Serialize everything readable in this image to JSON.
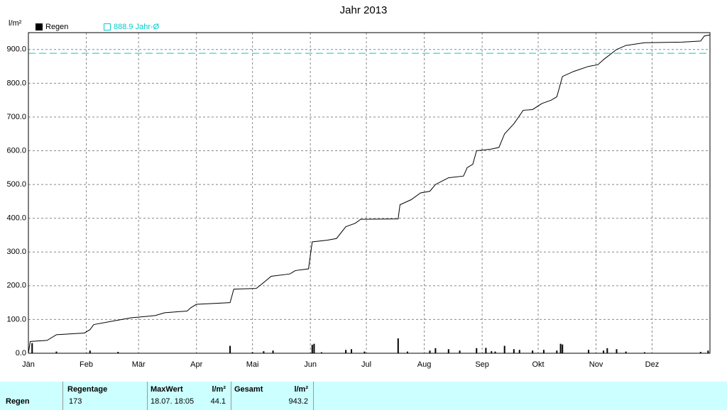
{
  "chart_data": {
    "type": "bar-line",
    "title": "Jahr 2013",
    "y_label": "l/m²",
    "xlim": [
      0,
      365
    ],
    "xticks": [
      {
        "value": 0,
        "label": "Jän"
      },
      {
        "value": 31,
        "label": "Feb"
      },
      {
        "value": 59,
        "label": "Mär"
      },
      {
        "value": 90,
        "label": "Apr"
      },
      {
        "value": 120,
        "label": "Mai"
      },
      {
        "value": 151,
        "label": "Jun"
      },
      {
        "value": 181,
        "label": "Jul"
      },
      {
        "value": 212,
        "label": "Aug"
      },
      {
        "value": 243,
        "label": "Sep"
      },
      {
        "value": 273,
        "label": "Okt"
      },
      {
        "value": 304,
        "label": "Nov"
      },
      {
        "value": 334,
        "label": "Dez"
      }
    ],
    "ylim": [
      0,
      950
    ],
    "yticks": [
      {
        "value": 0,
        "label": "0.0"
      },
      {
        "value": 100,
        "label": "100.0"
      },
      {
        "value": 200,
        "label": "200.0"
      },
      {
        "value": 300,
        "label": "300.0"
      },
      {
        "value": 400,
        "label": "400.0"
      },
      {
        "value": 500,
        "label": "500.0"
      },
      {
        "value": 600,
        "label": "600.0"
      },
      {
        "value": 700,
        "label": "700.0"
      },
      {
        "value": 800,
        "label": "800.0"
      },
      {
        "value": 900,
        "label": "900.0"
      }
    ],
    "grid": true,
    "series": [
      {
        "name": "Regen",
        "color": "#000000",
        "x": [
          2,
          15,
          33,
          48,
          108,
          120,
          126,
          131,
          152,
          153,
          157,
          170,
          173,
          180,
          198,
          203,
          215,
          218,
          225,
          231,
          240,
          245,
          248,
          250,
          255,
          260,
          263,
          270,
          276,
          283,
          285,
          286,
          300,
          308,
          310,
          315,
          320,
          330,
          360,
          364
        ],
        "values": [
          30,
          5,
          8,
          4,
          22,
          3,
          6,
          8,
          25,
          28,
          3,
          10,
          12,
          5,
          44.1,
          5,
          8,
          15,
          12,
          8,
          15,
          16,
          6,
          5,
          22,
          12,
          10,
          8,
          10,
          8,
          28,
          26,
          10,
          8,
          15,
          12,
          5,
          3,
          4,
          8
        ]
      }
    ],
    "line": {
      "color": "#000000",
      "x": [
        0,
        1,
        10,
        15,
        30,
        33,
        35,
        45,
        55,
        65,
        68,
        73,
        85,
        87,
        90,
        108,
        110,
        122,
        125,
        130,
        140,
        143,
        150,
        152,
        160,
        165,
        170,
        175,
        178,
        198,
        199,
        205,
        210,
        215,
        218,
        225,
        233,
        235,
        238,
        240,
        248,
        252,
        255,
        260,
        265,
        270,
        275,
        280,
        283,
        286,
        292,
        300,
        305,
        308,
        315,
        320,
        330,
        350,
        360,
        362,
        365
      ],
      "values": [
        0,
        35,
        38,
        55,
        60,
        70,
        85,
        95,
        105,
        110,
        112,
        120,
        125,
        135,
        145,
        150,
        190,
        192,
        205,
        228,
        235,
        245,
        250,
        330,
        335,
        340,
        375,
        385,
        397,
        398,
        440,
        455,
        475,
        480,
        500,
        520,
        525,
        550,
        560,
        600,
        605,
        610,
        650,
        680,
        720,
        722,
        740,
        750,
        760,
        820,
        835,
        850,
        855,
        870,
        900,
        912,
        920,
        922,
        925,
        940,
        943.2
      ]
    },
    "reference": {
      "value": 888.9,
      "label": "888.9 Jahr-Ø",
      "color": "#00cccc"
    }
  },
  "table": {
    "header": [
      "Regentage",
      "MaxWert",
      "l/m²",
      "Gesamt",
      "l/m²"
    ],
    "rows": [
      [
        "Regen",
        "173",
        "18.07. 18:05",
        "44.1",
        "943.2"
      ]
    ]
  }
}
